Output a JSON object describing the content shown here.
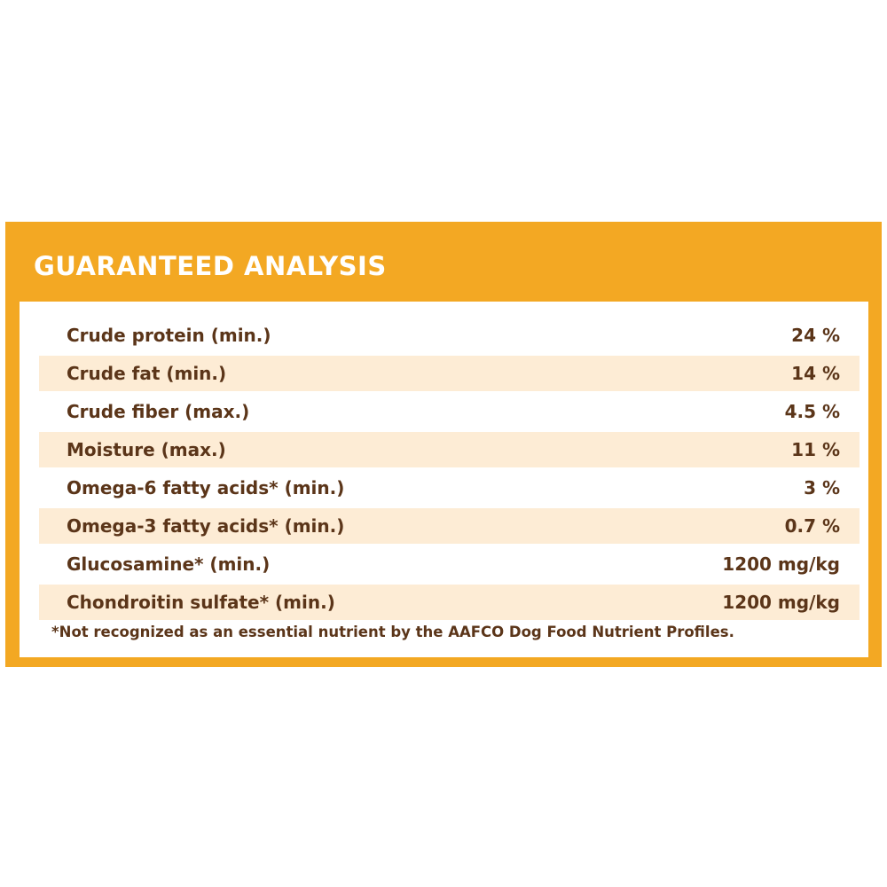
{
  "header": {
    "title": "GUARANTEED ANALYSIS"
  },
  "rows": [
    {
      "label": "Crude protein (min.)",
      "value": "24 %"
    },
    {
      "label": "Crude fat (min.)",
      "value": "14 %"
    },
    {
      "label": "Crude fiber (max.)",
      "value": "4.5 %"
    },
    {
      "label": "Moisture (max.)",
      "value": "11 %"
    },
    {
      "label": "Omega-6 fatty acids* (min.)",
      "value": "3 %"
    },
    {
      "label": "Omega-3 fatty acids* (min.)",
      "value": "0.7 %"
    },
    {
      "label": "Glucosamine* (min.)",
      "value": "1200 mg/kg"
    },
    {
      "label": "Chondroitin sulfate* (min.)",
      "value": "1200 mg/kg"
    }
  ],
  "footnote": "*Not recognized as an essential nutrient by the AAFCO Dog Food Nutrient Profiles.",
  "colors": {
    "accent": "#f3a823",
    "row_stripe": "#fdecd5",
    "text": "#5b3519",
    "header_text": "#ffffff"
  }
}
